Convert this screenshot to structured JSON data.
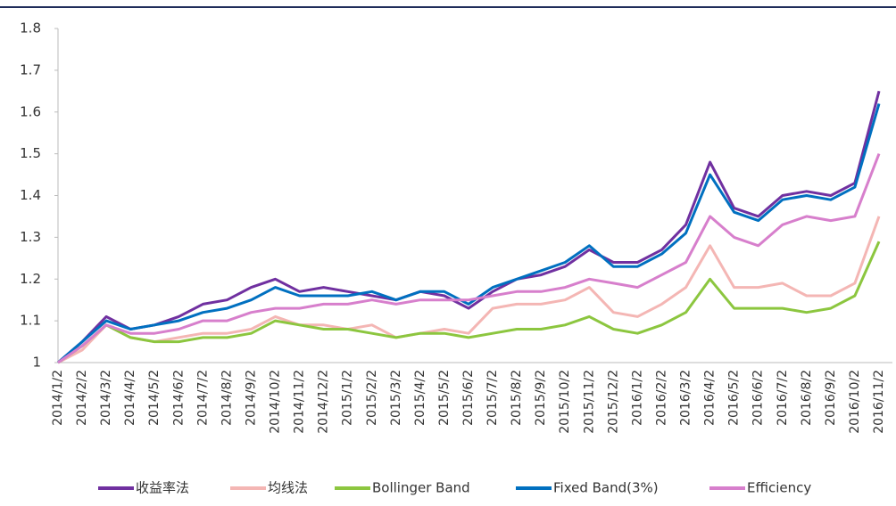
{
  "chart_data": {
    "type": "line",
    "categories": [
      "2014/1/2",
      "2014/2/2",
      "2014/3/2",
      "2014/4/2",
      "2014/5/2",
      "2014/6/2",
      "2014/7/2",
      "2014/8/2",
      "2014/9/2",
      "2014/10/2",
      "2014/11/2",
      "2014/12/2",
      "2015/1/2",
      "2015/2/2",
      "2015/3/2",
      "2015/4/2",
      "2015/5/2",
      "2015/6/2",
      "2015/7/2",
      "2015/8/2",
      "2015/9/2",
      "2015/10/2",
      "2015/11/2",
      "2015/12/2",
      "2016/1/2",
      "2016/2/2",
      "2016/3/2",
      "2016/4/2",
      "2016/5/2",
      "2016/6/2",
      "2016/7/2",
      "2016/8/2",
      "2016/9/2",
      "2016/10/2",
      "2016/11/2"
    ],
    "series": [
      {
        "name": "收益率法",
        "color": "#7030a0",
        "values": [
          1.0,
          1.05,
          1.11,
          1.08,
          1.09,
          1.11,
          1.14,
          1.15,
          1.18,
          1.2,
          1.17,
          1.18,
          1.17,
          1.16,
          1.15,
          1.17,
          1.16,
          1.13,
          1.17,
          1.2,
          1.21,
          1.23,
          1.27,
          1.24,
          1.24,
          1.27,
          1.33,
          1.48,
          1.37,
          1.35,
          1.4,
          1.41,
          1.4,
          1.43,
          1.65
        ]
      },
      {
        "name": "均线法",
        "color": "#f4b6b4",
        "values": [
          1.0,
          1.03,
          1.09,
          1.06,
          1.05,
          1.06,
          1.07,
          1.07,
          1.08,
          1.11,
          1.09,
          1.09,
          1.08,
          1.09,
          1.06,
          1.07,
          1.08,
          1.07,
          1.13,
          1.14,
          1.14,
          1.15,
          1.18,
          1.12,
          1.11,
          1.14,
          1.18,
          1.28,
          1.18,
          1.18,
          1.19,
          1.16,
          1.16,
          1.19,
          1.35
        ]
      },
      {
        "name": "Bollinger Band",
        "color": "#8cc63f",
        "values": [
          1.0,
          1.04,
          1.09,
          1.06,
          1.05,
          1.05,
          1.06,
          1.06,
          1.07,
          1.1,
          1.09,
          1.08,
          1.08,
          1.07,
          1.06,
          1.07,
          1.07,
          1.06,
          1.07,
          1.08,
          1.08,
          1.09,
          1.11,
          1.08,
          1.07,
          1.09,
          1.12,
          1.2,
          1.13,
          1.13,
          1.13,
          1.12,
          1.13,
          1.16,
          1.29
        ]
      },
      {
        "name": "Fixed Band(3%)",
        "color": "#0070c0",
        "values": [
          1.0,
          1.05,
          1.1,
          1.08,
          1.09,
          1.1,
          1.12,
          1.13,
          1.15,
          1.18,
          1.16,
          1.16,
          1.16,
          1.17,
          1.15,
          1.17,
          1.17,
          1.14,
          1.18,
          1.2,
          1.22,
          1.24,
          1.28,
          1.23,
          1.23,
          1.26,
          1.31,
          1.45,
          1.36,
          1.34,
          1.39,
          1.4,
          1.39,
          1.42,
          1.62
        ]
      },
      {
        "name": "Efficiency",
        "color": "#d77fcc",
        "values": [
          1.0,
          1.04,
          1.09,
          1.07,
          1.07,
          1.08,
          1.1,
          1.1,
          1.12,
          1.13,
          1.13,
          1.14,
          1.14,
          1.15,
          1.14,
          1.15,
          1.15,
          1.15,
          1.16,
          1.17,
          1.17,
          1.18,
          1.2,
          1.19,
          1.18,
          1.21,
          1.24,
          1.35,
          1.3,
          1.28,
          1.33,
          1.35,
          1.34,
          1.35,
          1.5
        ]
      }
    ],
    "ylim": [
      1,
      1.8
    ],
    "yticks": [
      1,
      1.1,
      1.2,
      1.3,
      1.4,
      1.5,
      1.6,
      1.7,
      1.8
    ]
  }
}
